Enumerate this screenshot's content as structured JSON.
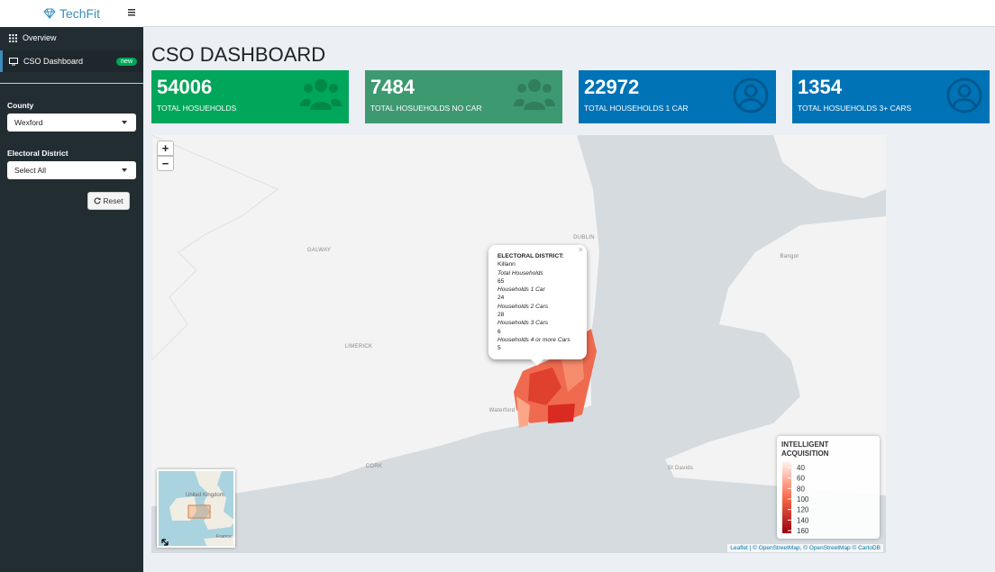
{
  "sidebar": {
    "brand": "TechFit",
    "menu": [
      {
        "label": "Overview"
      },
      {
        "label": "CSO Dashboard",
        "badge": "new"
      }
    ],
    "filters": [
      {
        "label": "County",
        "value": "Wexford"
      },
      {
        "label": "Electoral District",
        "value": "Select All"
      }
    ],
    "reset": "Reset"
  },
  "header": {
    "title": "CSO DASHBOARD"
  },
  "value_boxes": [
    {
      "value": 54006,
      "label": "TOTAL HOSUEHOLDS"
    },
    {
      "value": 7484,
      "label": "TOTAL HOSUEHOLDS NO CAR"
    },
    {
      "value": 22972,
      "label": "TOTAL HOUSEHOLDS 1 CAR"
    },
    {
      "value": 1354,
      "label": "TOTAL HOSUEHOLDS 3+ CARS"
    }
  ],
  "map": {
    "zoom_in": "+",
    "zoom_out": "−",
    "places": [
      "DUBLIN",
      "GALWAY",
      "LIMERICK",
      "Waterford",
      "CORK",
      "Bangor",
      "St Davids"
    ],
    "popup": {
      "close": "×",
      "heading": "ELECTORAL DISTRICT:",
      "name": "Killann",
      "fields": [
        {
          "label": "Total Households",
          "value": 65
        },
        {
          "label": "Households 1 Car",
          "value": 24
        },
        {
          "label": "Households 2 Cars",
          "value": 28
        },
        {
          "label": "Households 3 Cars",
          "value": 6
        },
        {
          "label": "Households 4 or more Cars",
          "value": 5
        }
      ]
    },
    "legend": {
      "title": "INTELLIGENT ACQUISITION",
      "ticks": [
        40,
        60,
        80,
        100,
        120,
        140,
        160
      ]
    },
    "minimap": [
      "United Kingdom",
      "France"
    ],
    "attribution": "Leaflet | © OpenStreetMap, © OpenStreetMap © CartoDB"
  }
}
